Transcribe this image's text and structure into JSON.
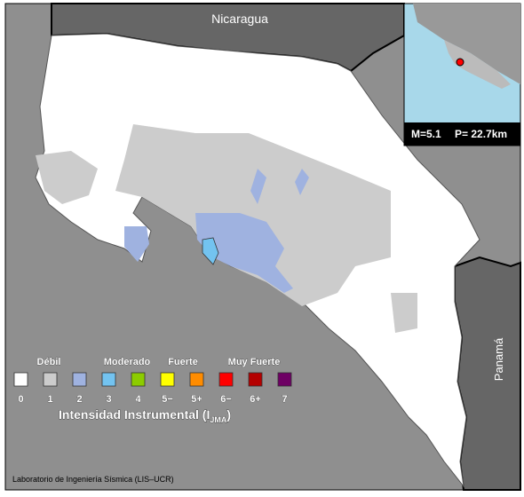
{
  "countries": [
    "Nicaragua",
    "Panamá"
  ],
  "inset": {
    "magnitude": "M=5.1",
    "depth": "P= 22.7km"
  },
  "legend": {
    "groups": [
      "Débil",
      "Moderado",
      "Fuerte",
      "Muy Fuerte"
    ],
    "classes": [
      {
        "label": "0",
        "color": "#ffffff"
      },
      {
        "label": "1",
        "color": "#cccccc"
      },
      {
        "label": "2",
        "color": "#9fb2e0"
      },
      {
        "label": "3",
        "color": "#73c3f0"
      },
      {
        "label": "4",
        "color": "#8ccc00"
      },
      {
        "label": "5−",
        "color": "#ffff00"
      },
      {
        "label": "5+",
        "color": "#ff8c00"
      },
      {
        "label": "6−",
        "color": "#ff0000"
      },
      {
        "label": "6+",
        "color": "#b40000"
      },
      {
        "label": "7",
        "color": "#6e0064"
      }
    ],
    "title": "Intensidad Instrumental (I",
    "title_sub": "JMA",
    "title_end": ")"
  },
  "credit": "Laboratorio de Ingeniería Sísmica (LIS–UCR)"
}
